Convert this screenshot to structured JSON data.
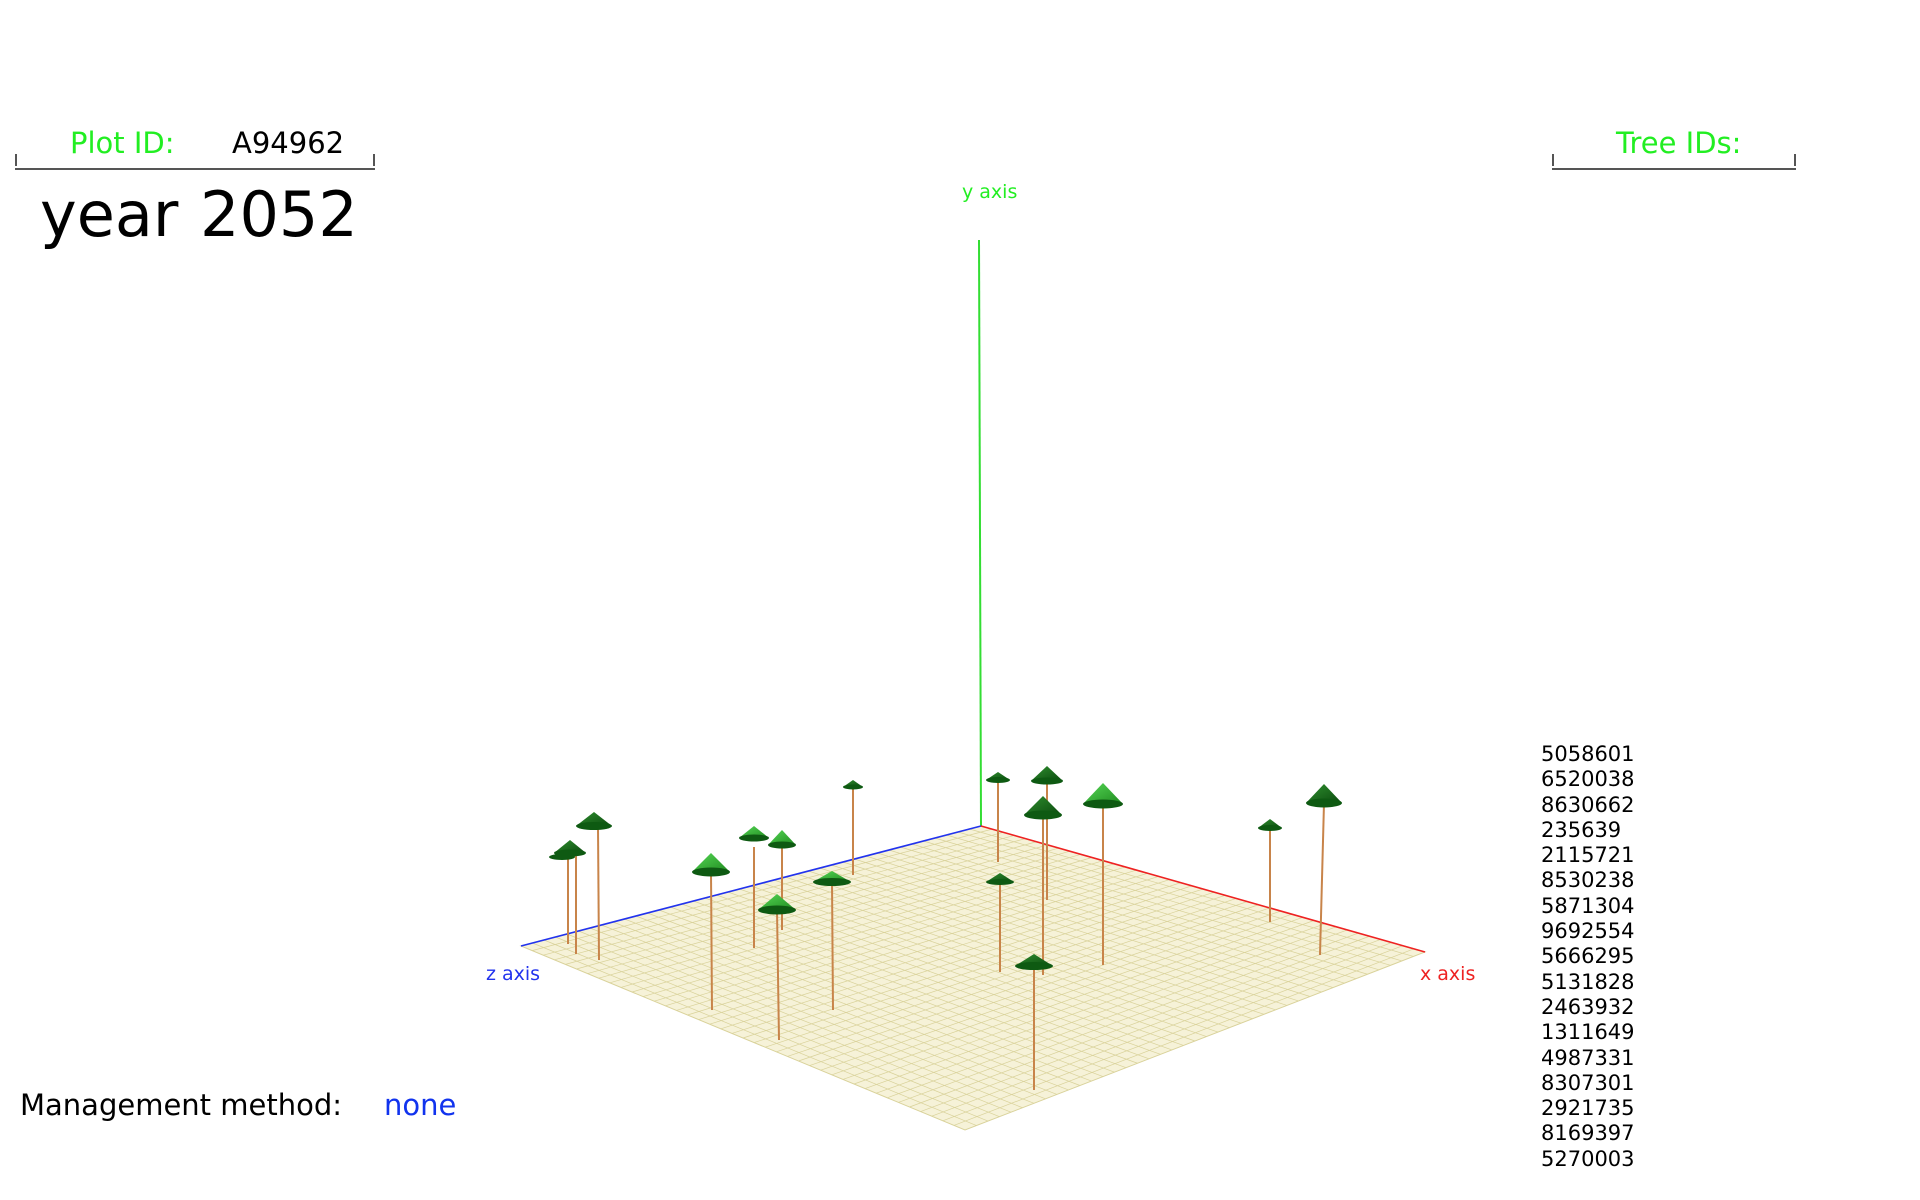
{
  "header": {
    "plot_id_label": "Plot ID:",
    "plot_id_value": "A94962",
    "year_label": "year",
    "year_value": "2052",
    "tree_ids_label": "Tree IDs:"
  },
  "scene": {
    "y_axis_label": "y axis",
    "z_axis_label": "z axis",
    "x_axis_label": "x axis"
  },
  "tree_ids": [
    "5058601",
    "6520038",
    "8630662",
    "235639",
    "2115721",
    "8530238",
    "5871304",
    "9692554",
    "5666295",
    "5131828",
    "2463932",
    "1311649",
    "4987331",
    "8307301",
    "2921735",
    "8169397",
    "5270003"
  ],
  "management": {
    "label": "Management method:",
    "value": "none"
  },
  "colors": {
    "label_green": "#22ee22",
    "axis_blue": "#2233ee",
    "axis_red": "#ee2222",
    "axis_green": "#33dd33",
    "value_blue": "#1133ee",
    "ground": "#f6f2d8",
    "grid": "#d9d29a",
    "trunk": "#c8844a",
    "crown_light": "#3cc43c",
    "crown_dark": "#0e5a12"
  }
}
